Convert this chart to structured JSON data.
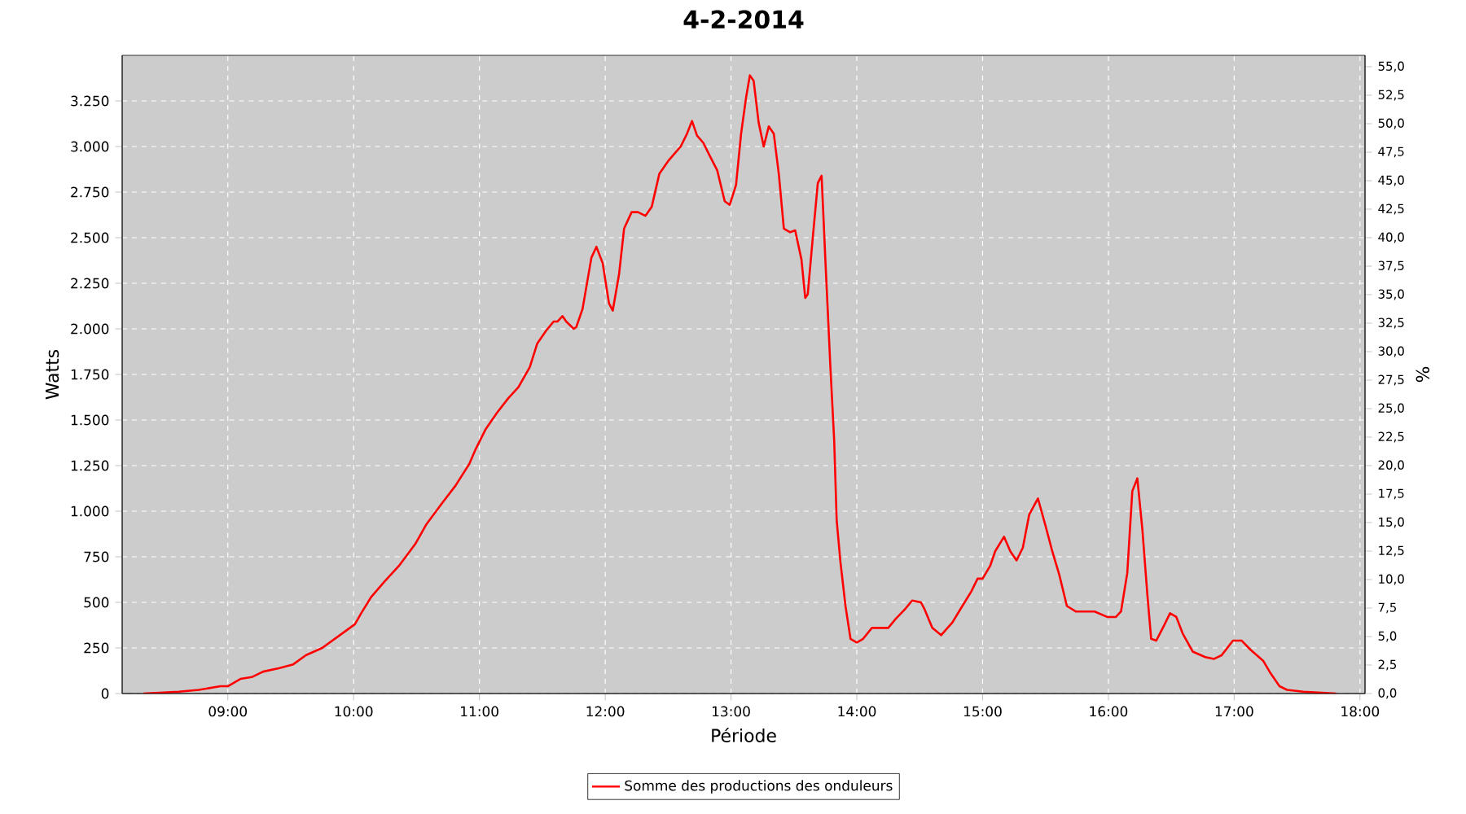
{
  "chart_data": {
    "type": "line",
    "title": "4-2-2014",
    "xlabel": "Période",
    "ylabel": "Watts",
    "y2label": "%",
    "xlim": [
      8.16,
      18.04
    ],
    "xticks": [
      {
        "value": 9,
        "label": "09:00"
      },
      {
        "value": 10,
        "label": "10:00"
      },
      {
        "value": 11,
        "label": "11:00"
      },
      {
        "value": 12,
        "label": "12:00"
      },
      {
        "value": 13,
        "label": "13:00"
      },
      {
        "value": 14,
        "label": "14:00"
      },
      {
        "value": 15,
        "label": "15:00"
      },
      {
        "value": 16,
        "label": "16:00"
      },
      {
        "value": 17,
        "label": "17:00"
      },
      {
        "value": 18,
        "label": "18:00"
      }
    ],
    "ylim": [
      0,
      3500
    ],
    "yticks": [
      0,
      250,
      500,
      750,
      {
        "value": 1000,
        "label": "1.000"
      },
      {
        "value": 1250,
        "label": "1.250"
      },
      {
        "value": 1500,
        "label": "1.500"
      },
      {
        "value": 1750,
        "label": "1.750"
      },
      {
        "value": 2000,
        "label": "2.000"
      },
      {
        "value": 2250,
        "label": "2.250"
      },
      {
        "value": 2500,
        "label": "2.500"
      },
      {
        "value": 2750,
        "label": "2.750"
      },
      {
        "value": 3000,
        "label": "3.000"
      },
      {
        "value": 3250,
        "label": "3.250"
      }
    ],
    "y2lim": [
      0,
      56
    ],
    "y2ticks": [
      {
        "value": 0,
        "label": "0,0"
      },
      {
        "value": 2.5,
        "label": "2,5"
      },
      {
        "value": 5,
        "label": "5,0"
      },
      {
        "value": 7.5,
        "label": "7,5"
      },
      {
        "value": 10,
        "label": "10,0"
      },
      {
        "value": 12.5,
        "label": "12,5"
      },
      {
        "value": 15,
        "label": "15,0"
      },
      {
        "value": 17.5,
        "label": "17,5"
      },
      {
        "value": 20,
        "label": "20,0"
      },
      {
        "value": 22.5,
        "label": "22,5"
      },
      {
        "value": 25,
        "label": "25,0"
      },
      {
        "value": 27.5,
        "label": "27,5"
      },
      {
        "value": 30,
        "label": "30,0"
      },
      {
        "value": 32.5,
        "label": "32,5"
      },
      {
        "value": 35,
        "label": "35,0"
      },
      {
        "value": 37.5,
        "label": "37,5"
      },
      {
        "value": 40,
        "label": "40,0"
      },
      {
        "value": 42.5,
        "label": "42,5"
      },
      {
        "value": 45,
        "label": "45,0"
      },
      {
        "value": 47.5,
        "label": "47,5"
      },
      {
        "value": 50,
        "label": "50,0"
      },
      {
        "value": 52.5,
        "label": "52,5"
      },
      {
        "value": 55,
        "label": "55,0"
      }
    ],
    "grid": true,
    "legend": "bottom",
    "series": [
      {
        "name": "Somme des productions des onduleurs",
        "color": "#ff0000",
        "x": [
          8.33,
          8.61,
          8.77,
          8.94,
          9.0,
          9.1,
          9.19,
          9.28,
          9.41,
          9.52,
          9.62,
          9.75,
          9.91,
          10.01,
          10.06,
          10.14,
          10.24,
          10.36,
          10.49,
          10.58,
          10.71,
          10.81,
          10.92,
          10.97,
          11.05,
          11.14,
          11.23,
          11.31,
          11.4,
          11.46,
          11.53,
          11.59,
          11.62,
          11.66,
          11.69,
          11.75,
          11.77,
          11.82,
          11.89,
          11.93,
          11.98,
          12.03,
          12.06,
          12.11,
          12.15,
          12.21,
          12.26,
          12.32,
          12.37,
          12.43,
          12.5,
          12.55,
          12.6,
          12.65,
          12.69,
          12.73,
          12.78,
          12.83,
          12.89,
          12.95,
          12.99,
          13.04,
          13.08,
          13.12,
          13.15,
          13.18,
          13.22,
          13.26,
          13.3,
          13.34,
          13.38,
          13.42,
          13.47,
          13.51,
          13.56,
          13.59,
          13.61,
          13.65,
          13.69,
          13.72,
          13.75,
          13.79,
          13.82,
          13.84,
          13.87,
          13.91,
          13.95,
          14.0,
          14.05,
          14.12,
          14.25,
          14.31,
          14.38,
          14.44,
          14.51,
          14.54,
          14.6,
          14.67,
          14.76,
          14.83,
          14.91,
          14.96,
          15.0,
          15.06,
          15.1,
          15.17,
          15.22,
          15.27,
          15.32,
          15.37,
          15.44,
          15.5,
          15.55,
          15.61,
          15.67,
          15.74,
          15.89,
          15.99,
          16.06,
          16.1,
          16.15,
          16.19,
          16.23,
          16.27,
          16.31,
          16.34,
          16.38,
          16.44,
          16.49,
          16.54,
          16.59,
          16.67,
          16.77,
          16.84,
          16.9,
          16.99,
          17.06,
          17.13,
          17.23,
          17.29,
          17.36,
          17.42,
          17.55,
          17.81
        ],
        "values": [
          0,
          10,
          20,
          40,
          40,
          80,
          90,
          120,
          140,
          160,
          210,
          250,
          330,
          380,
          440,
          530,
          610,
          700,
          820,
          930,
          1050,
          1140,
          1260,
          1340,
          1450,
          1540,
          1620,
          1680,
          1790,
          1920,
          1990,
          2040,
          2040,
          2070,
          2040,
          2000,
          2010,
          2110,
          2390,
          2450,
          2360,
          2140,
          2100,
          2300,
          2550,
          2640,
          2640,
          2620,
          2670,
          2850,
          2920,
          2960,
          3000,
          3070,
          3140,
          3060,
          3020,
          2950,
          2870,
          2700,
          2680,
          2790,
          3070,
          3270,
          3390,
          3360,
          3130,
          3000,
          3110,
          3070,
          2850,
          2550,
          2530,
          2540,
          2380,
          2170,
          2190,
          2500,
          2800,
          2840,
          2380,
          1790,
          1390,
          950,
          720,
          480,
          300,
          280,
          300,
          360,
          360,
          410,
          460,
          510,
          500,
          460,
          360,
          320,
          390,
          470,
          560,
          630,
          630,
          700,
          780,
          860,
          780,
          730,
          800,
          980,
          1070,
          920,
          790,
          650,
          480,
          450,
          450,
          420,
          420,
          450,
          660,
          1110,
          1180,
          900,
          540,
          300,
          290,
          370,
          440,
          420,
          330,
          230,
          200,
          190,
          210,
          290,
          290,
          240,
          180,
          110,
          40,
          20,
          10,
          0
        ]
      }
    ]
  }
}
